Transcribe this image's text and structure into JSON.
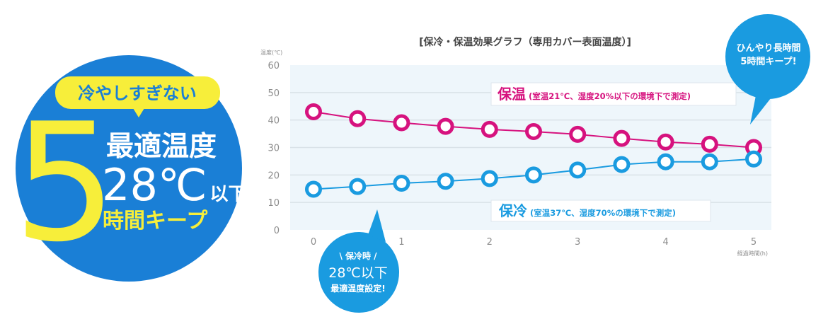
{
  "badge": {
    "tag": "冷やしすぎない",
    "big_number": "5",
    "line1": "最適温度",
    "temp": "28℃",
    "temp_suffix": "以下",
    "line3": "時間キープ",
    "colors": {
      "circle": "#1a7fd6",
      "yellow": "#f7ee3a",
      "tag_text": "#1a7fd6",
      "white": "#ffffff"
    }
  },
  "callout_top": {
    "line1": "ひんやり長時間",
    "line2": "5時間キープ!",
    "color": "#1a9be0"
  },
  "callout_bottom": {
    "line1": "\\ 保冷時 /",
    "line2": "28℃以下",
    "line3": "最適温度設定!",
    "color": "#1a9be0"
  },
  "chart_data": {
    "type": "line",
    "title": "[保冷・保温効果グラフ（専用カバー表面温度）]",
    "ylabel": "温度(℃)",
    "xlabel": "経過時間(h)",
    "ylim": [
      0,
      60
    ],
    "xlim": [
      0,
      5
    ],
    "yticks": [
      "0",
      "10",
      "20",
      "30",
      "40",
      "50",
      "60"
    ],
    "xticks": [
      "0",
      "1",
      "2",
      "3",
      "4",
      "5"
    ],
    "grid": true,
    "x": [
      0,
      0.5,
      1,
      1.5,
      2,
      2.5,
      3,
      3.5,
      4,
      4.5,
      5
    ],
    "series": [
      {
        "name": "保温",
        "label_main": "保温",
        "label_note": "(室温21℃、湿度20%以下の環境下で測定)",
        "color": "#d6127e",
        "values": [
          43,
          40.5,
          39,
          37.7,
          36.6,
          35.8,
          34.8,
          33.3,
          32,
          31.2,
          30
        ]
      },
      {
        "name": "保冷",
        "label_main": "保冷",
        "label_note": "(室温37℃、湿度70%の環境下で測定)",
        "color": "#1a9be0",
        "values": [
          14.8,
          15.8,
          17,
          17.7,
          18.7,
          20,
          21.8,
          23.8,
          24.8,
          24.8,
          25.8
        ]
      }
    ],
    "colors": {
      "plot_bg": "#eef6fb",
      "grid": "#d9e2e8",
      "tick": "#8c8c8c",
      "title": "#444444"
    }
  }
}
